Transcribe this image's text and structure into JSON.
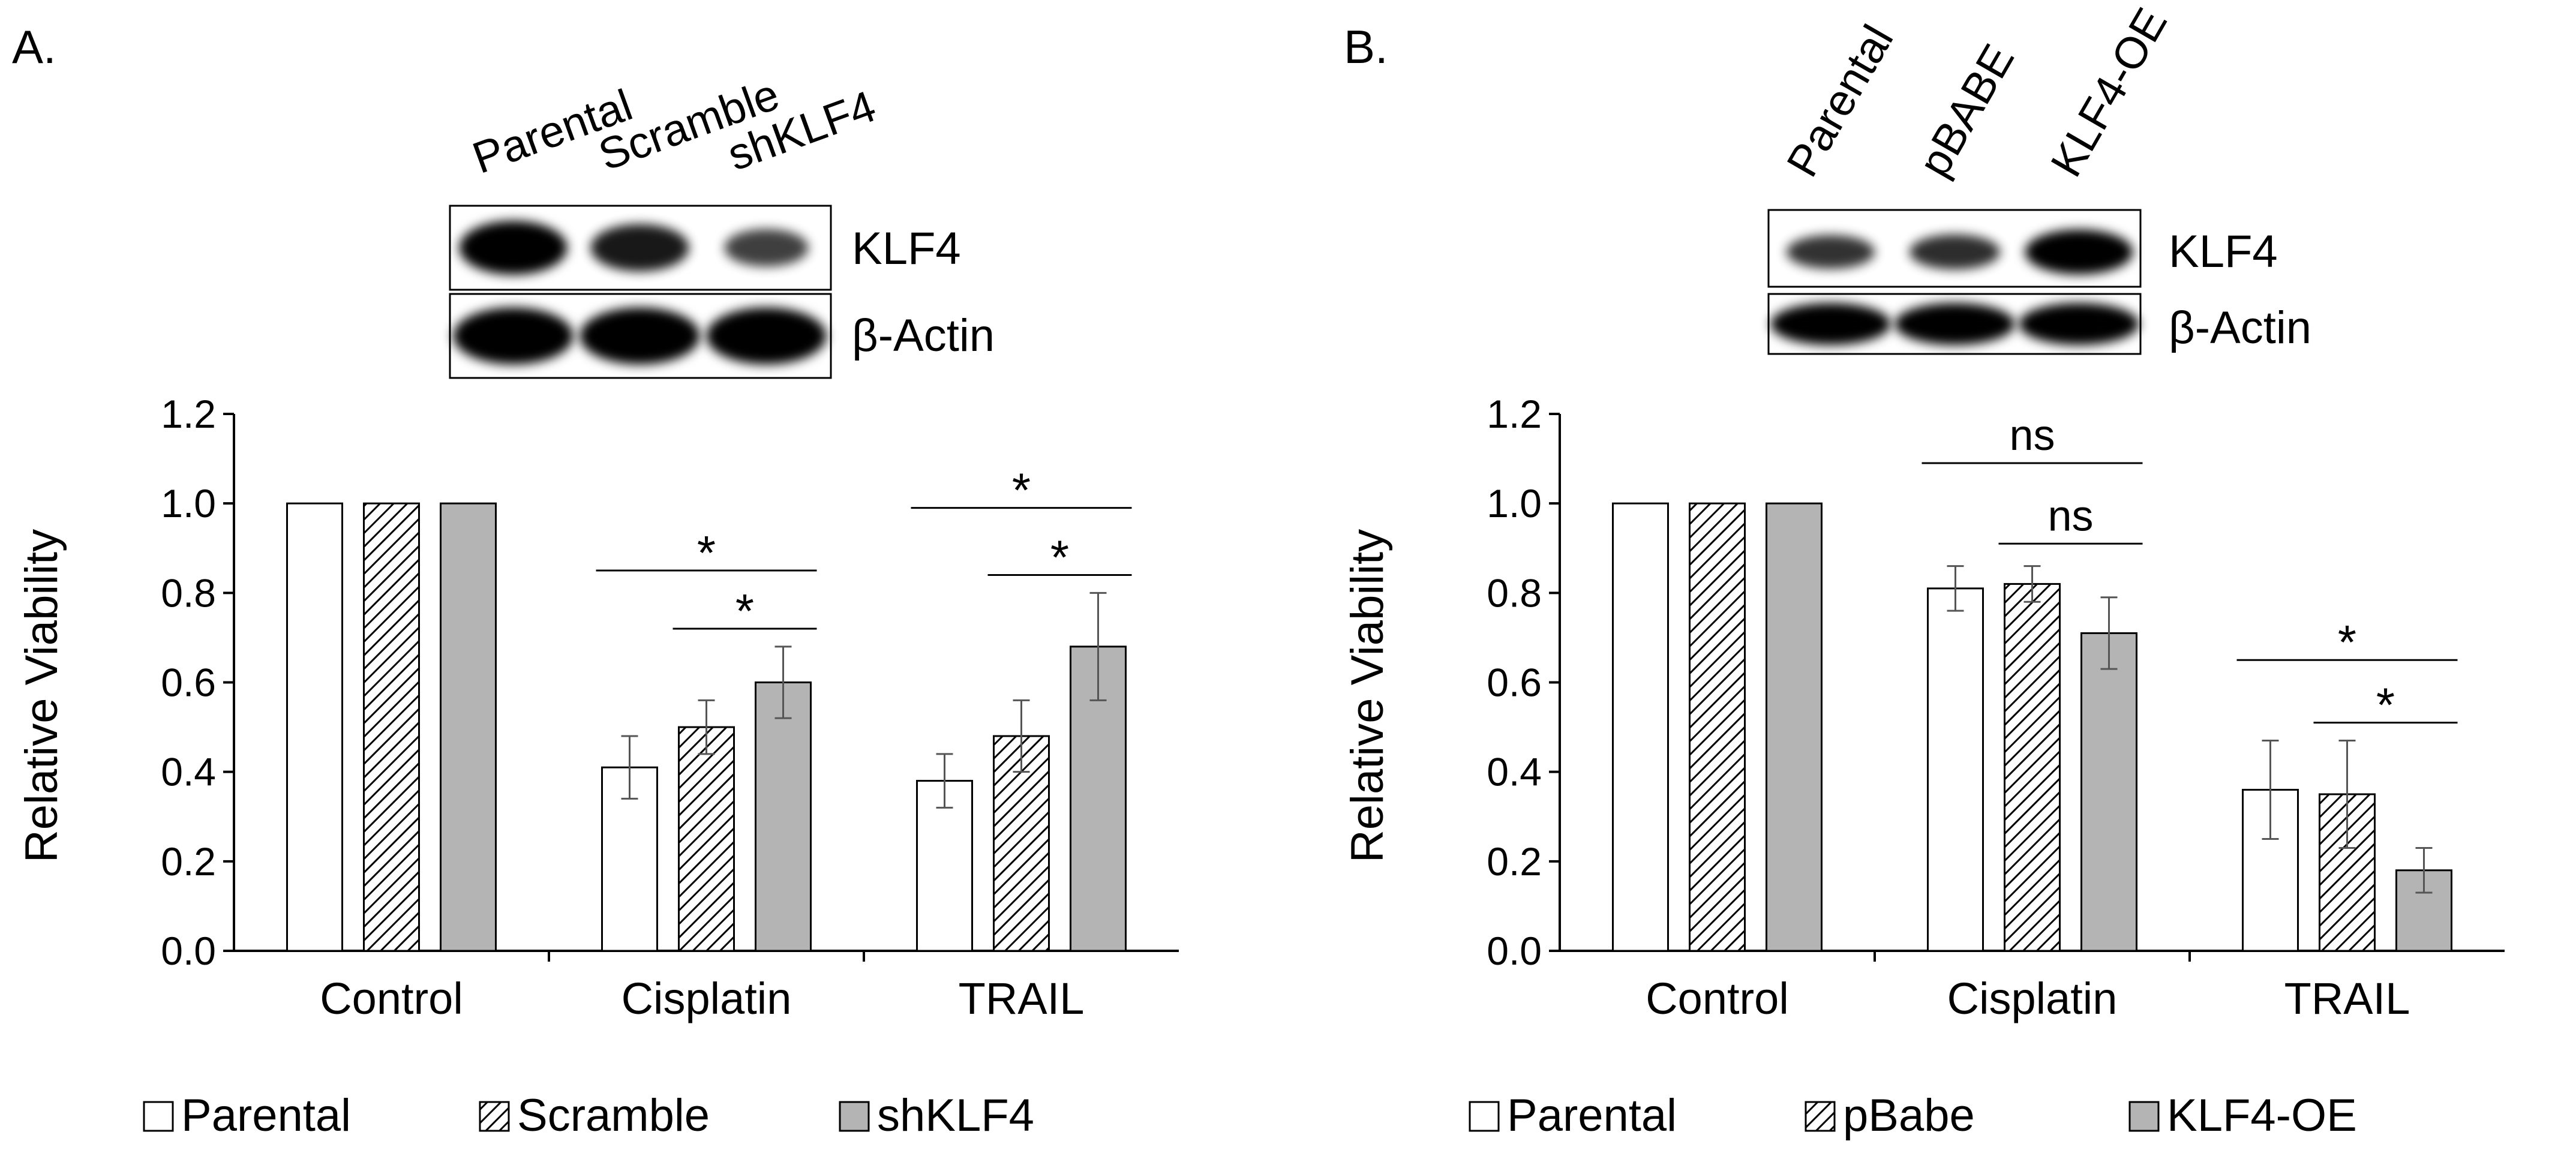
{
  "panels": [
    {
      "label": "A.",
      "blot": {
        "lanes": [
          "Parental",
          "Scramble",
          "shKLF4"
        ],
        "proteins": [
          "KLF4",
          "β-Actin"
        ],
        "klf4_band_intensity": [
          1.0,
          0.78,
          0.45
        ]
      },
      "chart_data": {
        "type": "bar",
        "title": "",
        "xlabel": "",
        "ylabel": "Relative Viability",
        "ylim": [
          0,
          1.2
        ],
        "yticks": [
          "0.0",
          "0.2",
          "0.4",
          "0.6",
          "0.8",
          "1.0",
          "1.2"
        ],
        "categories": [
          "Control",
          "Cisplatin",
          "TRAIL"
        ],
        "series": [
          {
            "name": "Parental",
            "values": [
              1.0,
              0.41,
              0.38
            ],
            "errors": [
              0,
              0.07,
              0.06
            ],
            "style": "white"
          },
          {
            "name": "Scramble",
            "values": [
              1.0,
              0.5,
              0.48
            ],
            "errors": [
              0,
              0.06,
              0.08
            ],
            "style": "hatched"
          },
          {
            "name": "shKLF4",
            "values": [
              1.0,
              0.6,
              0.68
            ],
            "errors": [
              0,
              0.08,
              0.12
            ],
            "style": "gray"
          }
        ],
        "significance": [
          {
            "category": 1,
            "from": 0,
            "to": 2,
            "y": 0.85,
            "label": "*"
          },
          {
            "category": 1,
            "from": 1,
            "to": 2,
            "y": 0.72,
            "label": "*"
          },
          {
            "category": 2,
            "from": 0,
            "to": 2,
            "y": 0.99,
            "label": "*"
          },
          {
            "category": 2,
            "from": 1,
            "to": 2,
            "y": 0.84,
            "label": "*"
          }
        ],
        "legend": {
          "placement": "bottom",
          "entries": [
            "Parental",
            "Scramble",
            "shKLF4"
          ]
        },
        "grid": false,
        "colors": {
          "white": "#ffffff",
          "gray": "#b4b4b4",
          "outline": "#000000"
        }
      }
    },
    {
      "label": "B.",
      "blot": {
        "lanes": [
          "Parental",
          "pBABE",
          "KLF4-OE"
        ],
        "proteins": [
          "KLF4",
          "β-Actin"
        ],
        "klf4_band_intensity": [
          0.55,
          0.6,
          1.0
        ]
      },
      "chart_data": {
        "type": "bar",
        "title": "",
        "xlabel": "",
        "ylabel": "Relative Viability",
        "ylim": [
          0,
          1.2
        ],
        "yticks": [
          "0.0",
          "0.2",
          "0.4",
          "0.6",
          "0.8",
          "1.0",
          "1.2"
        ],
        "categories": [
          "Control",
          "Cisplatin",
          "TRAIL"
        ],
        "series": [
          {
            "name": "Parental",
            "values": [
              1.0,
              0.81,
              0.36
            ],
            "errors": [
              0,
              0.05,
              0.11
            ],
            "style": "white"
          },
          {
            "name": "pBabe",
            "values": [
              1.0,
              0.82,
              0.35
            ],
            "errors": [
              0,
              0.04,
              0.12
            ],
            "style": "hatched"
          },
          {
            "name": "KLF4-OE",
            "values": [
              1.0,
              0.71,
              0.18
            ],
            "errors": [
              0,
              0.08,
              0.05
            ],
            "style": "gray"
          }
        ],
        "significance": [
          {
            "category": 1,
            "from": 0,
            "to": 2,
            "y": 1.09,
            "label": "ns"
          },
          {
            "category": 1,
            "from": 1,
            "to": 2,
            "y": 0.91,
            "label": "ns"
          },
          {
            "category": 2,
            "from": 0,
            "to": 2,
            "y": 0.65,
            "label": "*"
          },
          {
            "category": 2,
            "from": 1,
            "to": 2,
            "y": 0.51,
            "label": "*"
          }
        ],
        "legend": {
          "placement": "bottom",
          "entries": [
            "Parental",
            "pBabe",
            "KLF4-OE"
          ]
        },
        "grid": false,
        "colors": {
          "white": "#ffffff",
          "gray": "#b4b4b4",
          "outline": "#000000"
        }
      }
    }
  ]
}
